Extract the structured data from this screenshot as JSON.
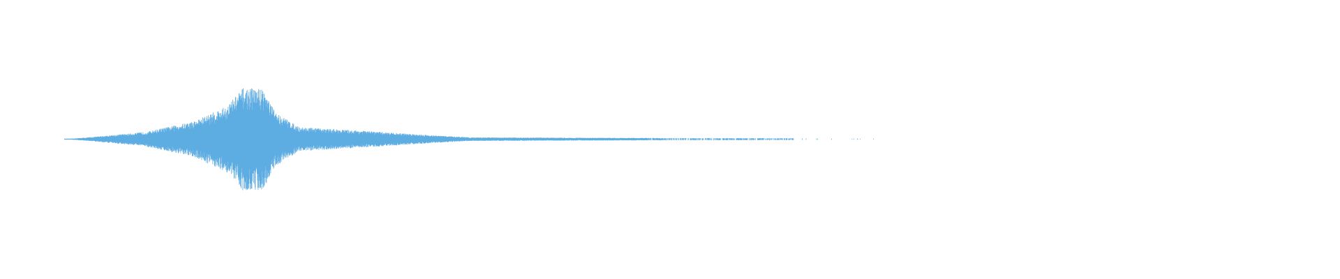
{
  "chart_data": {
    "type": "area",
    "title": "",
    "xlabel": "",
    "ylabel": "",
    "grid": false,
    "legend": "none",
    "color": "#5DACE2",
    "ylim": [
      -1,
      1
    ],
    "envelope": {
      "t": [
        0,
        0.03,
        0.1,
        0.16,
        0.2,
        0.22,
        0.245,
        0.26,
        0.29,
        0.38,
        0.46,
        0.5,
        0.6,
        0.72,
        0.9,
        0.95,
        1.0
      ],
      "amplitude": [
        0.0,
        0.03,
        0.12,
        0.3,
        0.55,
        0.85,
        0.85,
        0.45,
        0.2,
        0.13,
        0.06,
        0.03,
        0.025,
        0.02,
        0.015,
        0.01,
        0.005
      ]
    }
  }
}
